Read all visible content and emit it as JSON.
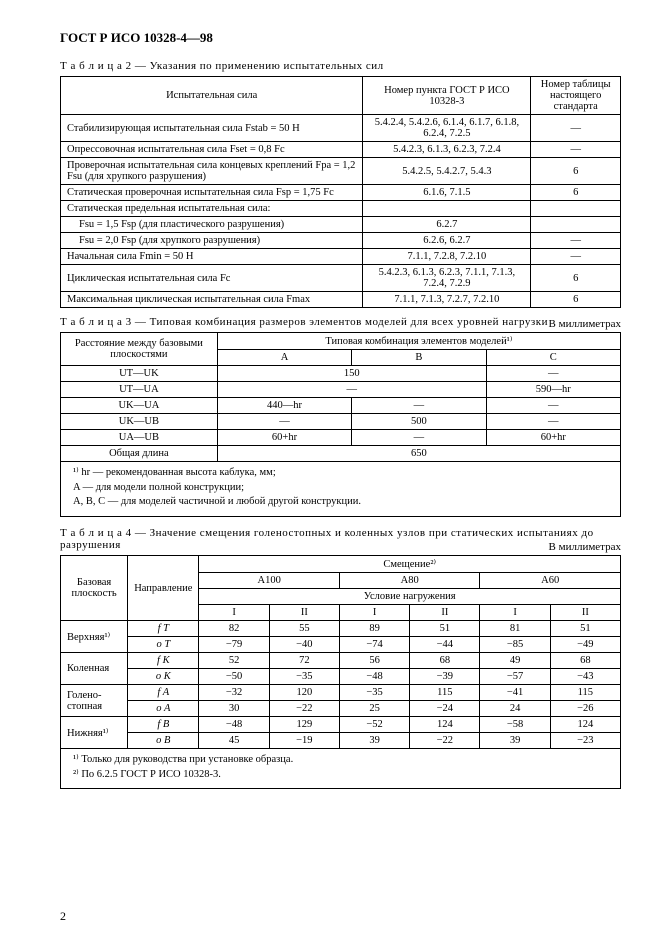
{
  "header": "ГОСТ Р ИСО 10328-4—98",
  "page_number": "2",
  "table2": {
    "caption": "Т а б л и ц а   2 — Указания по применению испытательных сил",
    "headers": [
      "Испытательная сила",
      "Номер пункта ГОСТ Р ИСО 10328-3",
      "Номер таблицы настоящего стандарта"
    ],
    "rows": [
      {
        "c1": "Стабилизирующая испытательная сила Fstab = 50 Н",
        "c2": "5.4.2.4, 5.4.2.6, 6.1.4, 6.1.7, 6.1.8, 6.2.4, 7.2.5",
        "c3": "—"
      },
      {
        "c1": "Опрессовочная испытательная сила Fset = 0,8 Fc",
        "c2": "5.4.2.3, 6.1.3, 6.2.3, 7.2.4",
        "c3": "—"
      },
      {
        "c1": "Проверочная испытательная сила концевых креплений Fpa = 1,2 Fsu (для хрупкого разрушения)",
        "c2": "5.4.2.5, 5.4.2.7, 5.4.3",
        "c3": "6"
      },
      {
        "c1": "Статическая проверочная испытательная сила Fsp = 1,75 Fc",
        "c2": "6.1.6, 7.1.5",
        "c3": "6"
      },
      {
        "c1": "Статическая предельная испытательная сила:",
        "c2": "",
        "c3": ""
      },
      {
        "c1": "Fsu = 1,5 Fsp (для пластического разрушения)",
        "c2": "6.2.7",
        "c3": "",
        "indent": true
      },
      {
        "c1": "Fsu = 2,0 Fsp (для хрупкого разрушения)",
        "c2": "6.2.6, 6.2.7",
        "c3": "—",
        "indent": true
      },
      {
        "c1": "Начальная сила Fmin = 50 Н",
        "c2": "7.1.1, 7.2.8, 7.2.10",
        "c3": "—"
      },
      {
        "c1": "Циклическая испытательная сила Fc",
        "c2": "5.4.2.3, 6.1.3, 6.2.3, 7.1.1, 7.1.3, 7.2.4, 7.2.9",
        "c3": "6"
      },
      {
        "c1": "Максимальная циклическая испытательная сила Fmax",
        "c2": "7.1.1, 7.1.3, 7.2.7, 7.2.10",
        "c3": "6"
      }
    ]
  },
  "table3": {
    "caption": "Т а б л и ц а    3 — Типовая комбинация размеров элементов моделей для всех уровней нагрузки",
    "units": "В миллиметрах",
    "h1": "Расстояние между базовыми плоскостями",
    "h2": "Типовая комбинация элементов моделей¹⁾",
    "sub": [
      "A",
      "B",
      "C"
    ],
    "rows": [
      {
        "l": "UT—UK",
        "a": "150",
        "b": "",
        "c": "—",
        "merge_ab": true
      },
      {
        "l": "UT—UA",
        "a": "—",
        "b": "",
        "c": "590—hr",
        "merge_ab": true
      },
      {
        "l": "UK—UA",
        "a": "440—hr",
        "b": "—",
        "c": "—"
      },
      {
        "l": "UK—UB",
        "a": "—",
        "b": "500",
        "c": "—"
      },
      {
        "l": "UA—UB",
        "a": "60+hr",
        "b": "—",
        "c": "60+hr"
      },
      {
        "l": "Общая длина",
        "a": "650",
        "merge_all": true
      }
    ],
    "footnotes": [
      "¹⁾ hr — рекомендованная высота каблука, мм;",
      "A — для модели полной конструкции;",
      "A, B, C — для моделей частичной и любой другой конструкции."
    ]
  },
  "table4": {
    "caption": "Т а б л и ц а   4 — Значение смещения голеностопных и коленных узлов при статических испытаниях до разрушения",
    "units": "В миллиметрах",
    "h_plane": "Базовая плоскость",
    "h_dir": "Направление",
    "h_disp": "Смещение²⁾",
    "h_load": "Условие нагружения",
    "levels": [
      "A100",
      "A80",
      "A60"
    ],
    "cond": [
      "I",
      "II"
    ],
    "rows": [
      {
        "plane": "Верхняя¹⁾",
        "rowspan": 2,
        "dir": "f T",
        "v": [
          "82",
          "55",
          "89",
          "51",
          "81",
          "51"
        ]
      },
      {
        "dir": "o T",
        "v": [
          "−79",
          "−40",
          "−74",
          "−44",
          "−85",
          "−49"
        ]
      },
      {
        "plane": "Коленная",
        "rowspan": 2,
        "dir": "f K",
        "v": [
          "52",
          "72",
          "56",
          "68",
          "49",
          "68"
        ]
      },
      {
        "dir": "o K",
        "v": [
          "−50",
          "−35",
          "−48",
          "−39",
          "−57",
          "−43"
        ]
      },
      {
        "plane": "Голено-стопная",
        "rowspan": 2,
        "dir": "f A",
        "v": [
          "−32",
          "120",
          "−35",
          "115",
          "−41",
          "115"
        ]
      },
      {
        "dir": "o A",
        "v": [
          "30",
          "−22",
          "25",
          "−24",
          "24",
          "−26"
        ]
      },
      {
        "plane": "Нижняя¹⁾",
        "rowspan": 2,
        "dir": "f B",
        "v": [
          "−48",
          "129",
          "−52",
          "124",
          "−58",
          "124"
        ]
      },
      {
        "dir": "o B",
        "v": [
          "45",
          "−19",
          "39",
          "−22",
          "39",
          "−23"
        ]
      }
    ],
    "footnotes": [
      "¹⁾ Только для руководства при установке образца.",
      "²⁾ По 6.2.5 ГОСТ Р ИСО 10328-3."
    ]
  }
}
